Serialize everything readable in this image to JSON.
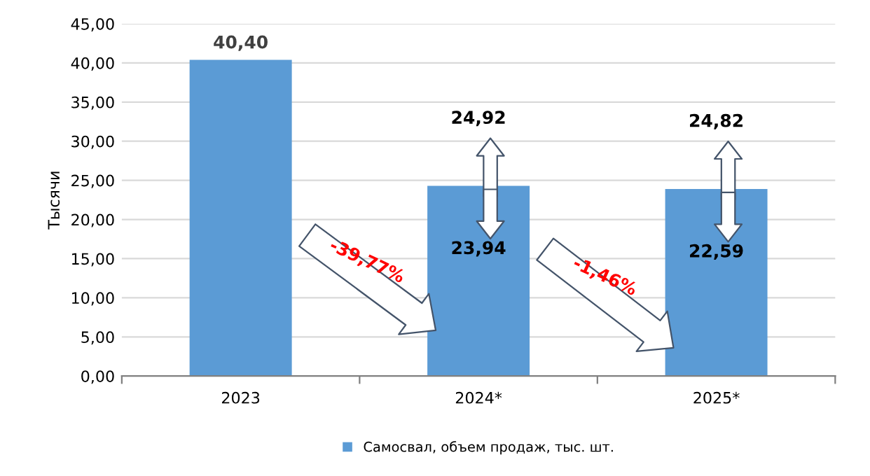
{
  "chart_data": {
    "type": "bar",
    "ylabel": "Тысячи",
    "categories": [
      "2023",
      "2024*",
      "2025*"
    ],
    "series": [
      {
        "name": "Самосвал, объем продаж, тыс. шт.",
        "color": "#5b9bd5",
        "values": [
          40.4,
          24.3,
          23.9
        ],
        "value_labels": [
          "40,40",
          null,
          null
        ]
      }
    ],
    "ylim": [
      0,
      45
    ],
    "yticks": [
      {
        "value": 0,
        "label": "0,00"
      },
      {
        "value": 5,
        "label": "5,00"
      },
      {
        "value": 10,
        "label": "10,00"
      },
      {
        "value": 15,
        "label": "15,00"
      },
      {
        "value": 20,
        "label": "20,00"
      },
      {
        "value": 25,
        "label": "25,00"
      },
      {
        "value": 30,
        "label": "30,00"
      },
      {
        "value": 35,
        "label": "35,00"
      },
      {
        "value": 40,
        "label": "40,00"
      },
      {
        "value": 45,
        "label": "45,00"
      }
    ],
    "grid": "y",
    "legend": "bottom",
    "annotations": [
      "24,92",
      "23,94",
      "24,82",
      "22,59",
      "-39,77%",
      "-1,46%"
    ]
  }
}
